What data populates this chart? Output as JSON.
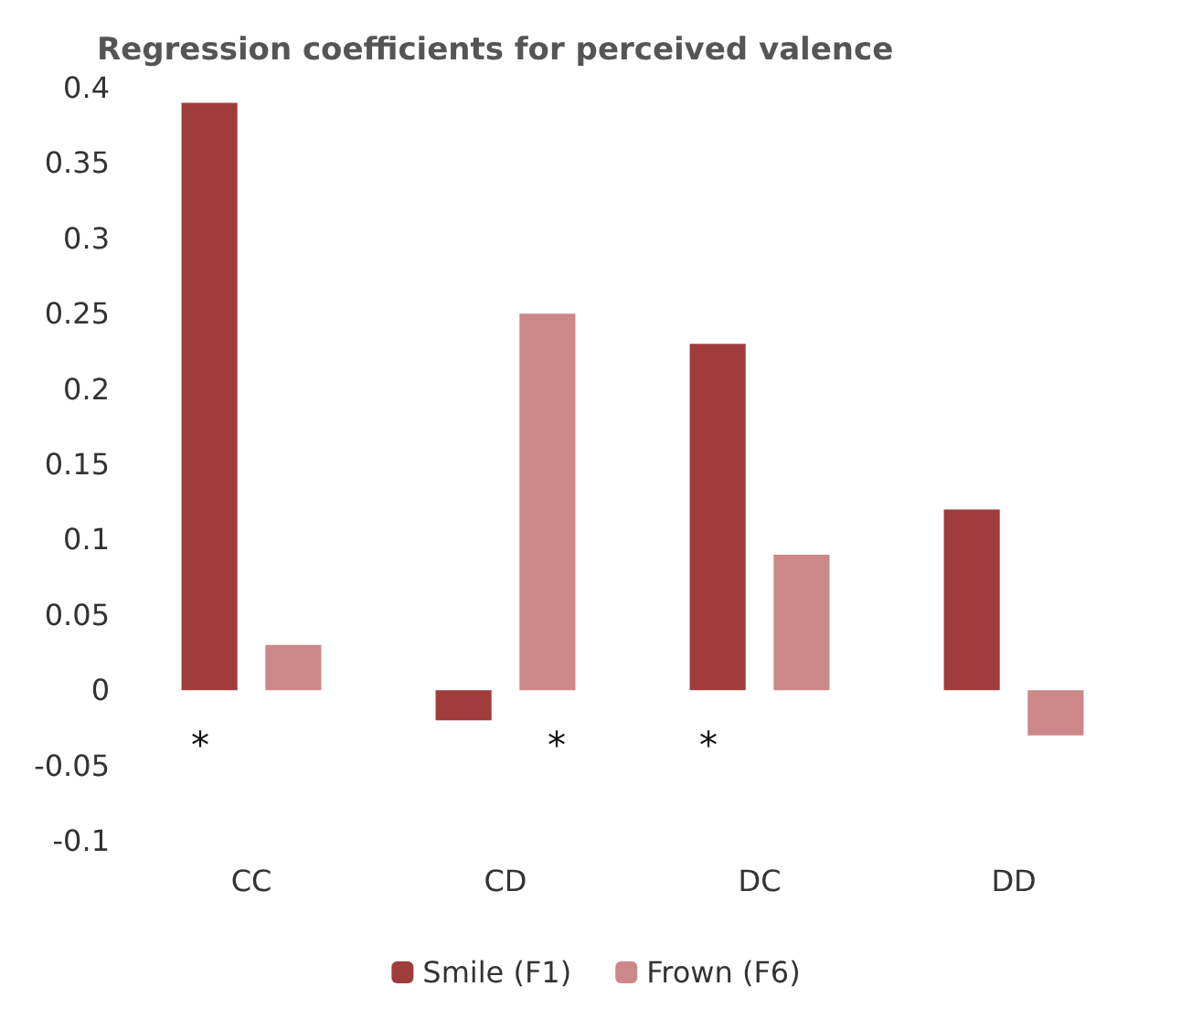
{
  "chart_data": {
    "type": "bar",
    "title": "Regression coefficients for perceived valence",
    "categories": [
      "CC",
      "CD",
      "DC",
      "DD"
    ],
    "series": [
      {
        "name": "Smile (F1)",
        "color": "#a03c3c",
        "values": [
          0.39,
          -0.02,
          0.23,
          0.12
        ]
      },
      {
        "name": "Frown (F6)",
        "color": "#cc8888",
        "values": [
          0.03,
          0.25,
          0.09,
          -0.03
        ]
      }
    ],
    "ylim": [
      -0.1,
      0.4
    ],
    "yticks": [
      -0.1,
      -0.05,
      0,
      0.05,
      0.1,
      0.15,
      0.2,
      0.25,
      0.3,
      0.35,
      0.4
    ],
    "grid": false,
    "legend": "bottom",
    "annotations": [
      "*",
      "*",
      "*"
    ]
  }
}
